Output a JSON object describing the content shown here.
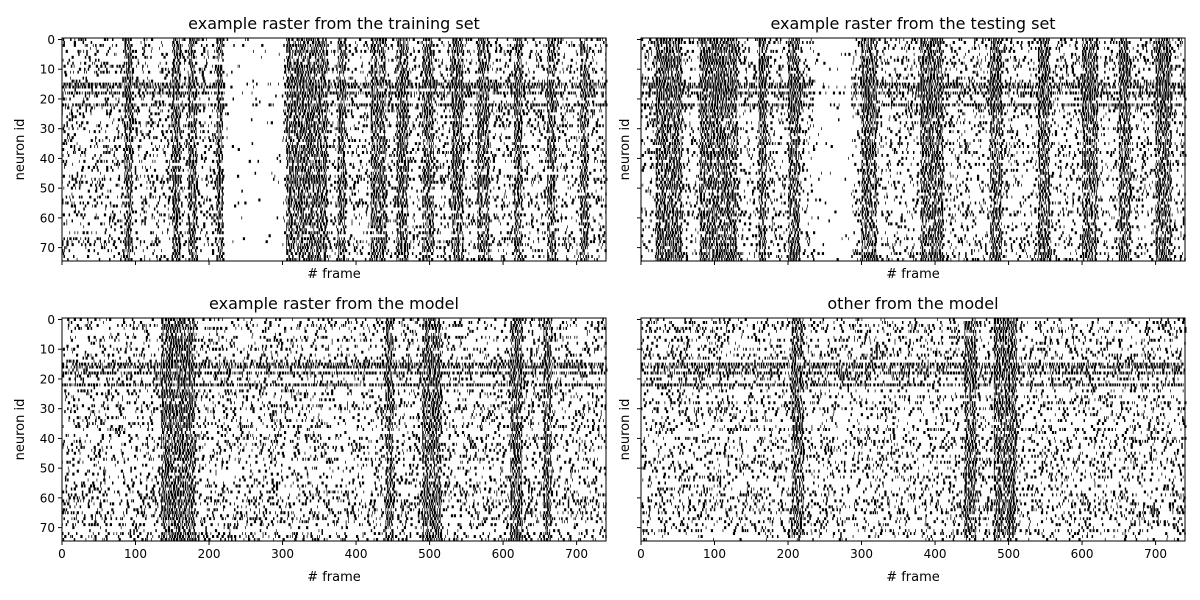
{
  "chart_data": [
    {
      "type": "heatmap",
      "title": "example raster from the training set",
      "xlabel": "# frame",
      "ylabel": "neuron id",
      "xlim": [
        0,
        740
      ],
      "ylim": [
        74,
        0
      ],
      "xticks": [
        0,
        100,
        200,
        300,
        400,
        500,
        600,
        700
      ],
      "yticks": [
        0,
        10,
        20,
        30,
        40,
        50,
        60,
        70
      ],
      "show_xticklabels": false,
      "show_yticklabels": true,
      "neurons": 75,
      "frames": 740,
      "colors": {
        "spike": "#000000",
        "silence": "#ffffff"
      },
      "dense_rows": [
        15,
        16,
        18,
        22
      ],
      "active_frames": [
        [
          85,
          95
        ],
        [
          150,
          160
        ],
        [
          172,
          182
        ],
        [
          210,
          218
        ],
        [
          305,
          360
        ],
        [
          375,
          385
        ],
        [
          420,
          440
        ],
        [
          455,
          470
        ],
        [
          490,
          505
        ],
        [
          530,
          545
        ],
        [
          565,
          580
        ],
        [
          615,
          625
        ],
        [
          660,
          670
        ],
        [
          705,
          715
        ]
      ],
      "quiet_frames": [
        [
          220,
          300
        ]
      ]
    },
    {
      "type": "heatmap",
      "title": "example raster from the testing set",
      "xlabel": "# frame",
      "ylabel": "neuron id",
      "xlim": [
        0,
        740
      ],
      "ylim": [
        74,
        0
      ],
      "xticks": [
        0,
        100,
        200,
        300,
        400,
        500,
        600,
        700
      ],
      "yticks": [
        0,
        10,
        20,
        30,
        40,
        50,
        60,
        70
      ],
      "show_xticklabels": false,
      "show_yticklabels": false,
      "neurons": 75,
      "frames": 740,
      "colors": {
        "spike": "#000000",
        "silence": "#ffffff"
      },
      "dense_rows": [
        15,
        16,
        18,
        22
      ],
      "active_frames": [
        [
          20,
          55
        ],
        [
          80,
          130
        ],
        [
          160,
          170
        ],
        [
          200,
          215
        ],
        [
          300,
          320
        ],
        [
          380,
          410
        ],
        [
          475,
          490
        ],
        [
          540,
          555
        ],
        [
          600,
          620
        ],
        [
          650,
          665
        ],
        [
          700,
          720
        ]
      ],
      "quiet_frames": [
        [
          235,
          285
        ]
      ]
    },
    {
      "type": "heatmap",
      "title": "example raster from the model",
      "xlabel": "# frame",
      "ylabel": "neuron id",
      "xlim": [
        0,
        740
      ],
      "ylim": [
        74,
        0
      ],
      "xticks": [
        0,
        100,
        200,
        300,
        400,
        500,
        600,
        700
      ],
      "yticks": [
        0,
        10,
        20,
        30,
        40,
        50,
        60,
        70
      ],
      "show_xticklabels": true,
      "show_yticklabels": true,
      "neurons": 75,
      "frames": 740,
      "colors": {
        "spike": "#000000",
        "silence": "#ffffff"
      },
      "dense_rows": [
        15,
        16,
        18,
        22
      ],
      "active_frames": [
        [
          135,
          180
        ],
        [
          440,
          450
        ],
        [
          490,
          515
        ],
        [
          610,
          625
        ],
        [
          655,
          665
        ]
      ],
      "quiet_frames": []
    },
    {
      "type": "heatmap",
      "title": "other from the model",
      "xlabel": "# frame",
      "ylabel": "neuron id",
      "xlim": [
        0,
        740
      ],
      "ylim": [
        74,
        0
      ],
      "xticks": [
        0,
        100,
        200,
        300,
        400,
        500,
        600,
        700
      ],
      "yticks": [
        0,
        10,
        20,
        30,
        40,
        50,
        60,
        70
      ],
      "show_xticklabels": true,
      "show_yticklabels": false,
      "neurons": 75,
      "frames": 740,
      "colors": {
        "spike": "#000000",
        "silence": "#ffffff"
      },
      "dense_rows": [
        15,
        16,
        18,
        22
      ],
      "active_frames": [
        [
          205,
          220
        ],
        [
          440,
          455
        ],
        [
          480,
          510
        ]
      ],
      "quiet_frames": []
    }
  ]
}
